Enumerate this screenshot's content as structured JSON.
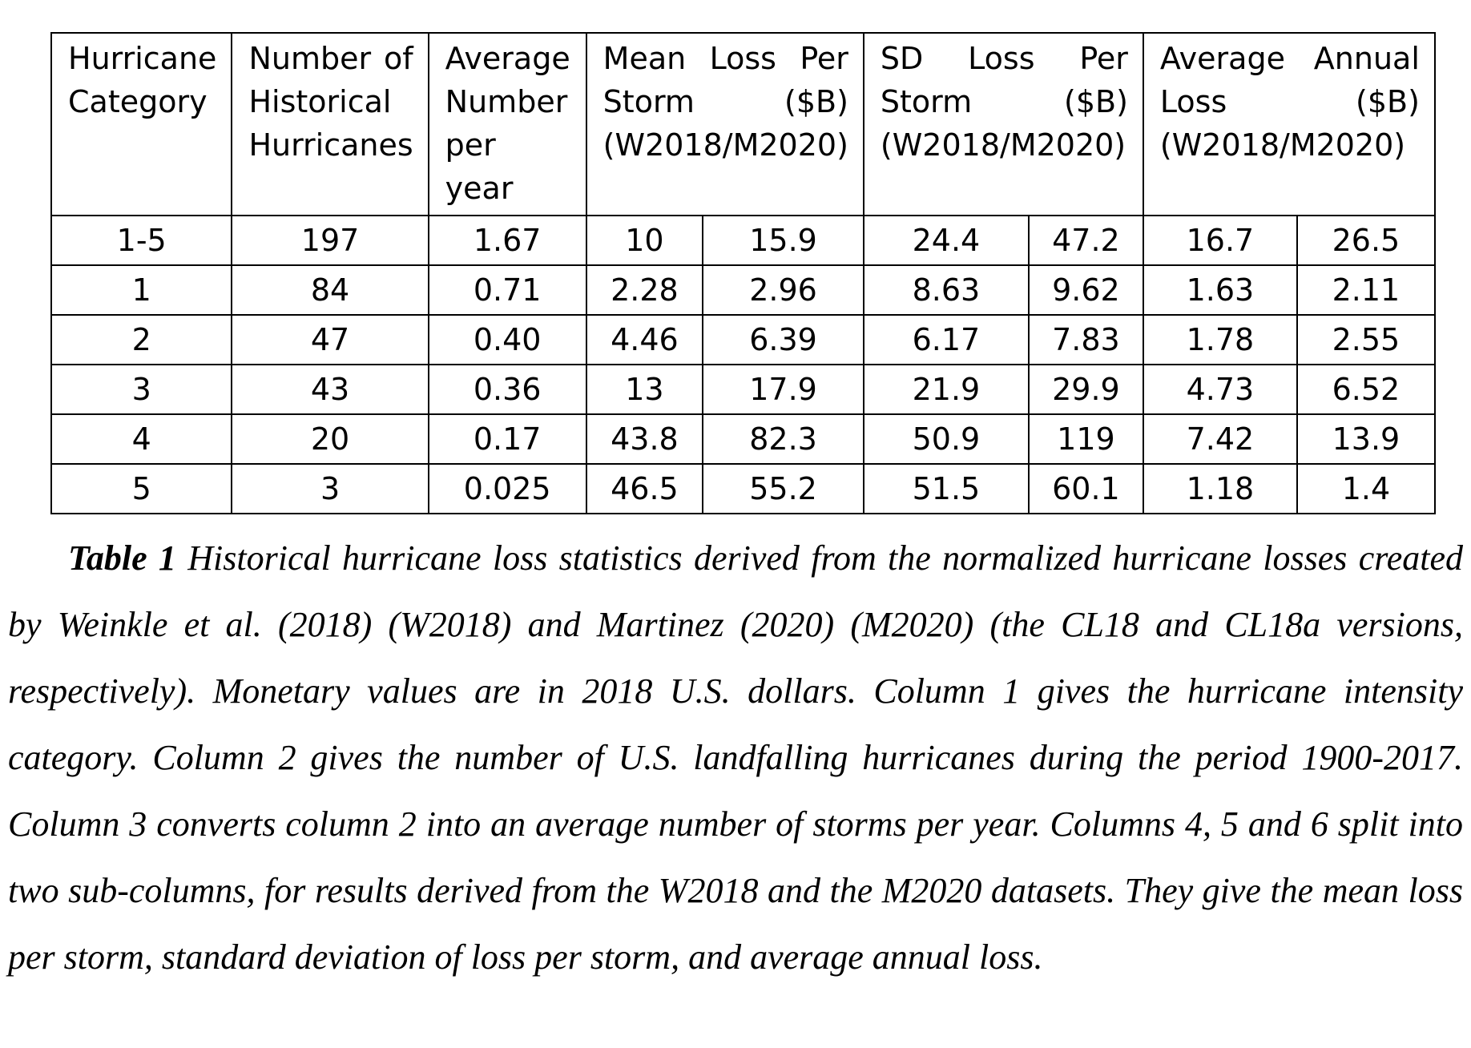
{
  "table": {
    "headers": [
      {
        "text": "Hurricane Category",
        "colspan": 1
      },
      {
        "text": "Number of Historical Hurricanes",
        "colspan": 1
      },
      {
        "text": "Average Number per year",
        "colspan": 1
      },
      {
        "text": "Mean Loss Per Storm ($B) (W2018/M2020)",
        "colspan": 2
      },
      {
        "text": "SD Loss Per Storm ($B) (W2018/M2020)",
        "colspan": 2
      },
      {
        "text": "Average Annual Loss ($B) (W2018/M2020)",
        "colspan": 2
      }
    ],
    "rows": [
      [
        "1-5",
        "197",
        "1.67",
        "10",
        "15.9",
        "24.4",
        "47.2",
        "16.7",
        "26.5"
      ],
      [
        "1",
        "84",
        "0.71",
        "2.28",
        "2.96",
        "8.63",
        "9.62",
        "1.63",
        "2.11"
      ],
      [
        "2",
        "47",
        "0.40",
        "4.46",
        "6.39",
        "6.17",
        "7.83",
        "1.78",
        "2.55"
      ],
      [
        "3",
        "43",
        "0.36",
        "13",
        "17.9",
        "21.9",
        "29.9",
        "4.73",
        "6.52"
      ],
      [
        "4",
        "20",
        "0.17",
        "43.8",
        "82.3",
        "50.9",
        "119",
        "7.42",
        "13.9"
      ],
      [
        "5",
        "3",
        "0.025",
        "46.5",
        "55.2",
        "51.5",
        "60.1",
        "1.18",
        "1.4"
      ]
    ]
  },
  "caption": {
    "label": "Table 1",
    "text": "Historical hurricane loss statistics derived from the normalized hurricane losses created by Weinkle et al. (2018) (W2018) and Martinez (2020) (M2020) (the CL18 and CL18a versions, respectively). Monetary values are in 2018 U.S. dollars. Column 1 gives the hurricane intensity category. Column 2 gives the number of U.S. landfalling hurricanes during the period 1900-2017. Column 3 converts column 2 into an average number of storms per year. Columns 4, 5 and 6 split into two sub-columns, for results derived from the W2018 and the M2020 datasets. They give the mean loss per storm, standard deviation of loss per storm, and average annual loss."
  }
}
